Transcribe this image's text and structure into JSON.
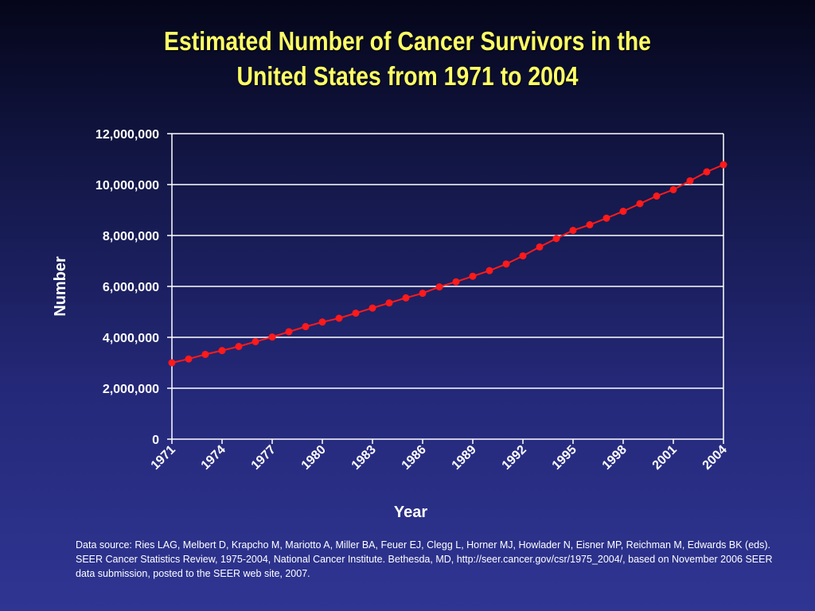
{
  "title": {
    "line1": "Estimated Number of Cancer Survivors in the",
    "line2": "United States from 1971 to 2004"
  },
  "colors": {
    "title": "#ffff66",
    "series": "#ff1a1a",
    "axis_text": "#ffffff",
    "gridlines": "#ffffff"
  },
  "chart_data": {
    "type": "line",
    "xlabel": "Year",
    "ylabel": "Number",
    "xlim": [
      1971,
      2004
    ],
    "ylim": [
      0,
      12000000
    ],
    "grid": true,
    "x_tick_labels": [
      "1971",
      "1974",
      "1977",
      "1980",
      "1983",
      "1986",
      "1989",
      "1992",
      "1995",
      "1998",
      "2001",
      "2004"
    ],
    "y_tick_labels": [
      "0",
      "2,000,000",
      "4,000,000",
      "6,000,000",
      "8,000,000",
      "10,000,000",
      "12,000,000"
    ],
    "y_ticks": [
      0,
      2000000,
      4000000,
      6000000,
      8000000,
      10000000,
      12000000
    ],
    "series": [
      {
        "x": [
          1971,
          1972,
          1973,
          1974,
          1975,
          1976,
          1977,
          1978,
          1979,
          1980,
          1981,
          1982,
          1983,
          1984,
          1985,
          1986,
          1987,
          1988,
          1989,
          1990,
          1991,
          1992,
          1993,
          1994,
          1995,
          1996,
          1997,
          1998,
          1999,
          2000,
          2001,
          2002,
          2003,
          2004
        ],
        "values": [
          3000000,
          3150000,
          3330000,
          3480000,
          3640000,
          3830000,
          4010000,
          4220000,
          4420000,
          4600000,
          4750000,
          4950000,
          5150000,
          5350000,
          5550000,
          5730000,
          5980000,
          6180000,
          6400000,
          6620000,
          6880000,
          7200000,
          7550000,
          7880000,
          8200000,
          8420000,
          8680000,
          8950000,
          9250000,
          9550000,
          9800000,
          10150000,
          10500000,
          10780000
        ]
      }
    ]
  },
  "source_note": "Data source:  Ries LAG, Melbert D, Krapcho M, Mariotto A, Miller BA, Feuer EJ, Clegg L, Horner MJ, Howlader N, Eisner MP, Reichman M, Edwards BK (eds). SEER Cancer Statistics Review, 1975-2004, National Cancer Institute. Bethesda, MD, http://seer.cancer.gov/csr/1975_2004/, based on November 2006 SEER data submission, posted to the SEER web site, 2007."
}
